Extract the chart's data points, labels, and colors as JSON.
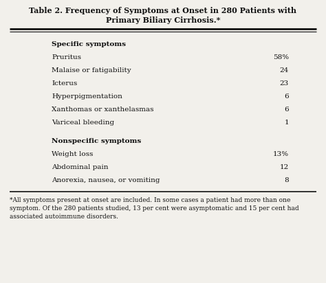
{
  "title_line1": "Table 2. Frequency of Symptoms at Onset in 280 Patients with",
  "title_line2": "Primary Biliary Cirrhosis.*",
  "section1_header": "Specific symptoms",
  "section1_rows": [
    [
      "Pruritus",
      "58%"
    ],
    [
      "Malaise or fatigability",
      "24"
    ],
    [
      "Icterus",
      "23"
    ],
    [
      "Hyperpigmentation",
      "6"
    ],
    [
      "Xanthomas or xanthelasmas",
      "6"
    ],
    [
      "Variceal bleeding",
      "1"
    ]
  ],
  "section2_header": "Nonspecific symptoms",
  "section2_rows": [
    [
      "Weight loss",
      "13%"
    ],
    [
      "Abdominal pain",
      "12"
    ],
    [
      "Anorexia, nausea, or vomiting",
      "8"
    ]
  ],
  "footnote_lines": [
    "*All symptoms present at onset are included. In some cases a patient had more than one",
    "symptom. Of the 280 patients studied, 13 per cent were asymptomatic and 15 per cent had",
    "associated autoimmune disorders."
  ],
  "bg_color": "#f2f0eb",
  "text_color": "#111111",
  "title_fontsize": 8.0,
  "body_fontsize": 7.5,
  "header_fontsize": 7.5,
  "footnote_fontsize": 6.5
}
